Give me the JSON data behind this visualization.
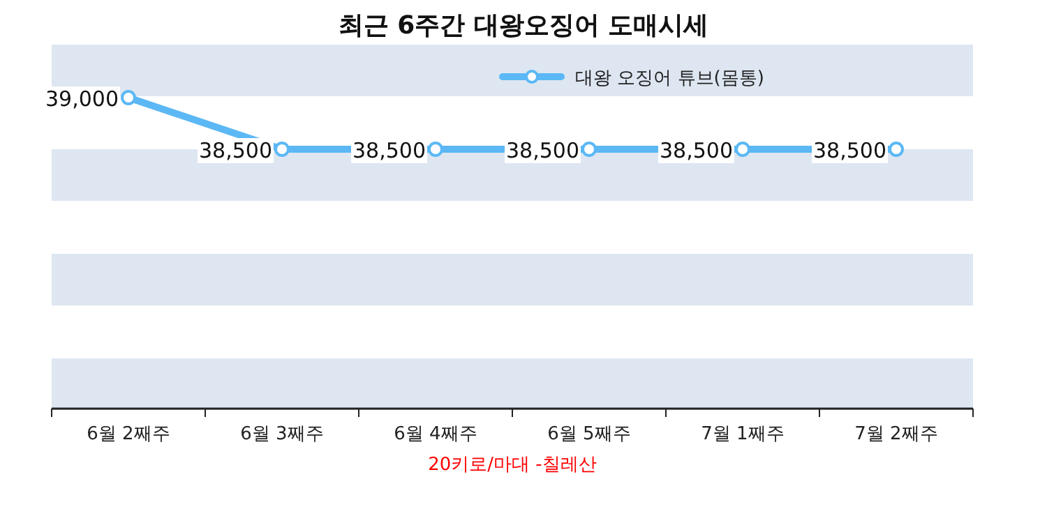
{
  "chart_data": {
    "type": "line",
    "title": "최근 6주간 대왕오징어 도매시세",
    "xlabel": "20키로/마대 -칠레산",
    "categories": [
      "6월 2째주",
      "6월 3째주",
      "6월 4째주",
      "6월 5째주",
      "7월 1째주",
      "7월 2째주"
    ],
    "series": [
      {
        "name": "대왕 오징어 튜브(몸통)",
        "color": "#5bb8f5",
        "values": [
          39000,
          38500,
          38500,
          38500,
          38500,
          38500
        ],
        "value_labels": [
          "39,000",
          "38,500",
          "38,500",
          "38,500",
          "38,500",
          "38,500"
        ]
      }
    ],
    "tick_labels": "x",
    "legend": "top right",
    "marker": "circle",
    "line_style": "solid"
  }
}
